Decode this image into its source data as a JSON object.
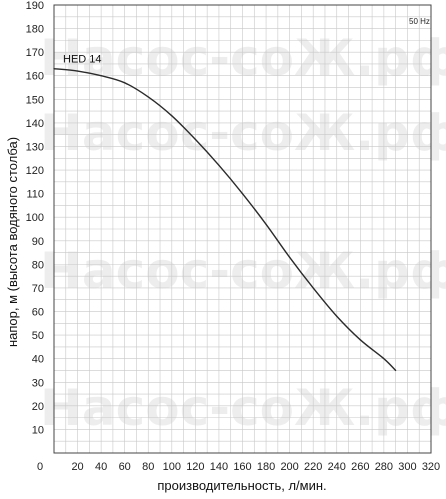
{
  "chart_data": {
    "type": "line",
    "title": "",
    "xlabel": "производительность, л/мин.",
    "ylabel": "напор, м (высота водяного столба)",
    "xlim": [
      0,
      320
    ],
    "ylim": [
      0,
      190
    ],
    "x_ticks": [
      0,
      20,
      40,
      60,
      80,
      100,
      120,
      140,
      160,
      180,
      200,
      220,
      240,
      260,
      280,
      300,
      320
    ],
    "y_ticks": [
      10,
      20,
      30,
      40,
      50,
      60,
      70,
      80,
      90,
      100,
      110,
      120,
      130,
      140,
      150,
      160,
      170,
      180,
      190
    ],
    "y_zero_label": "0",
    "grid": true,
    "frequency_note": "50 Hz",
    "watermark": "Насос-соЖ.рф",
    "series": [
      {
        "name": "HED 14",
        "color": "#2b2b2b",
        "x": [
          0,
          20,
          40,
          60,
          80,
          100,
          120,
          140,
          160,
          180,
          200,
          220,
          240,
          260,
          280,
          290
        ],
        "y": [
          163,
          162,
          160,
          157,
          151,
          143,
          133,
          122,
          110,
          97,
          83,
          70,
          58,
          48,
          40,
          35
        ]
      }
    ]
  }
}
